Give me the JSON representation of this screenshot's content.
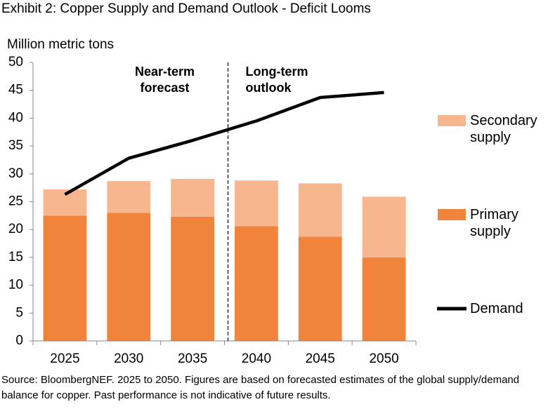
{
  "chart_data": {
    "type": "bar",
    "stacked": true,
    "title": "Exhibit 2: Copper Supply and Demand Outlook - Deficit Looms",
    "y_label": "Million metric tons",
    "categories": [
      "2025",
      "2030",
      "2035",
      "2040",
      "2045",
      "2050"
    ],
    "series": [
      {
        "name": "Primary supply",
        "type": "bar",
        "color": "#f0843c",
        "values": [
          22.5,
          23.0,
          22.3,
          20.6,
          18.7,
          15.0
        ]
      },
      {
        "name": "Secondary supply",
        "type": "bar",
        "color": "#f8b68e",
        "values": [
          4.7,
          5.7,
          6.8,
          8.2,
          9.6,
          10.9
        ]
      },
      {
        "name": "Demand",
        "type": "line",
        "color": "#000000",
        "values": [
          26.3,
          32.8,
          36.0,
          39.5,
          43.7,
          44.6
        ]
      }
    ],
    "ylim": [
      0,
      50
    ],
    "yticks": [
      0,
      5,
      10,
      15,
      20,
      25,
      30,
      35,
      40,
      45,
      50
    ],
    "grid": false,
    "annotations": [
      "Near-term forecast",
      "Long-term outlook"
    ],
    "source": "Source: BloombergNEF. 2025 to 2050. Figures are based on forecasted estimates of the global supply/demand balance for copper. Past performance is not indicative of future results."
  }
}
